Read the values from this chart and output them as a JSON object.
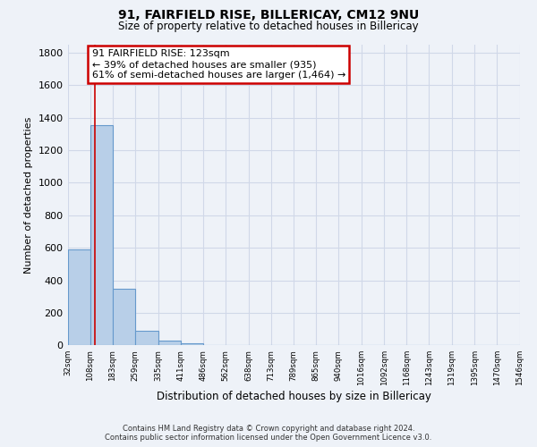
{
  "title": "91, FAIRFIELD RISE, BILLERICAY, CM12 9NU",
  "subtitle": "Size of property relative to detached houses in Billericay",
  "xlabel": "Distribution of detached houses by size in Billericay",
  "ylabel": "Number of detached properties",
  "bar_edges": [
    32,
    108,
    183,
    259,
    335,
    411,
    486,
    562,
    638,
    713,
    789,
    865,
    940,
    1016,
    1092,
    1168,
    1243,
    1319,
    1395,
    1470,
    1546
  ],
  "bar_heights": [
    590,
    1355,
    350,
    90,
    30,
    12,
    0,
    0,
    0,
    0,
    0,
    0,
    0,
    0,
    0,
    0,
    0,
    0,
    0,
    0
  ],
  "bar_color": "#b8cfe8",
  "bar_edgecolor": "#6699cc",
  "vline_x": 123,
  "vline_color": "#cc0000",
  "annotation_title": "91 FAIRFIELD RISE: 123sqm",
  "annotation_line1": "← 39% of detached houses are smaller (935)",
  "annotation_line2": "61% of semi-detached houses are larger (1,464) →",
  "annotation_box_edgecolor": "#cc0000",
  "annotation_box_facecolor": "#ffffff",
  "ylim": [
    0,
    1850
  ],
  "yticks": [
    0,
    200,
    400,
    600,
    800,
    1000,
    1200,
    1400,
    1600,
    1800
  ],
  "grid_color": "#d0d8e8",
  "footer_line1": "Contains HM Land Registry data © Crown copyright and database right 2024.",
  "footer_line2": "Contains public sector information licensed under the Open Government Licence v3.0.",
  "bg_color": "#eef2f8",
  "x_tick_labels": [
    "32sqm",
    "108sqm",
    "183sqm",
    "259sqm",
    "335sqm",
    "411sqm",
    "486sqm",
    "562sqm",
    "638sqm",
    "713sqm",
    "789sqm",
    "865sqm",
    "940sqm",
    "1016sqm",
    "1092sqm",
    "1168sqm",
    "1243sqm",
    "1319sqm",
    "1395sqm",
    "1470sqm",
    "1546sqm"
  ]
}
